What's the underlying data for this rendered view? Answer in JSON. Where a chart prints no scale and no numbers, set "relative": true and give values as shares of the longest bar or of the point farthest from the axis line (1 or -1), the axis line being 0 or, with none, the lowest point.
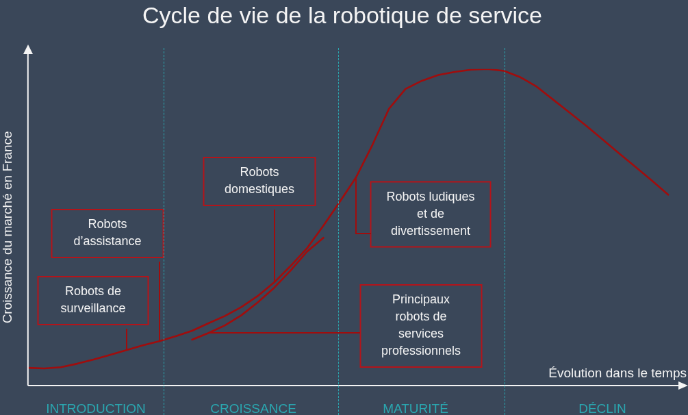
{
  "chart_data": {
    "type": "line",
    "title": "Cycle de vie de la robotique de service",
    "xlabel": "Évolution dans le temps",
    "ylabel": "Croissance du marché en France",
    "relative": true,
    "marker": "none",
    "line_style": "solid",
    "categories": [
      null,
      null,
      null,
      null,
      null,
      null,
      null,
      null,
      null,
      null,
      null,
      null,
      null,
      null,
      null,
      null,
      null,
      null,
      null,
      null,
      null,
      null,
      null,
      null,
      null,
      null,
      null,
      null,
      null,
      null,
      null,
      null,
      null,
      null,
      null,
      null,
      null,
      null,
      null,
      null,
      null
    ],
    "series": [
      {
        "color": "#a00d0d",
        "values": [
          0.056,
          0.054,
          0.058,
          0.069,
          0.082,
          0.097,
          0.112,
          0.127,
          0.14,
          0.156,
          0.173,
          0.197,
          0.22,
          0.248,
          0.283,
          0.326,
          0.378,
          0.434,
          0.505,
          0.581,
          0.659,
          0.762,
          0.875,
          0.937,
          0.963,
          0.981,
          0.991,
          0.998,
          1,
          0.994,
          0.974,
          0.944,
          0.903,
          0.862,
          0.821,
          0.778,
          0.734,
          0.691,
          0.648,
          0.603,
          null
        ]
      },
      {
        "color": "#a00d0d",
        "values": [
          null,
          null,
          null,
          null,
          null,
          null,
          null,
          null,
          null,
          null,
          0.145,
          0.166,
          0.19,
          0.222,
          0.263,
          0.309,
          0.363,
          0.423,
          0.467,
          null,
          null,
          null,
          null,
          null,
          null,
          null,
          null,
          null,
          null,
          null,
          null,
          null,
          null,
          null,
          null,
          null,
          null,
          null,
          null,
          null,
          null
        ]
      }
    ],
    "annotations": [
      "Robots de surveillance",
      "Robots d’assistance",
      "Robots domestiques",
      "Robots ludiques et de divertissement",
      "Principaux robots de services professionnels",
      "INTRODUCTION",
      "CROISSANCE",
      "MATURITÉ",
      "DÉCLIN"
    ]
  }
}
